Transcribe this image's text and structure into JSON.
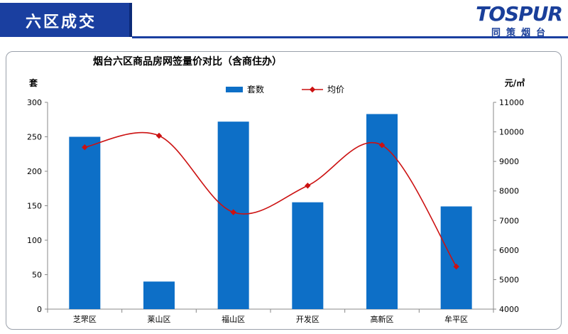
{
  "header": {
    "title": "六区成交"
  },
  "brand": {
    "name": "TOSPUR",
    "subtitle": "同策烟台",
    "color": "#1a3f9a"
  },
  "chart_data": {
    "type": "bar",
    "title": "烟台六区商品房网签量价对比（含商住办）",
    "categories": [
      "芝罘区",
      "莱山区",
      "福山区",
      "开发区",
      "高新区",
      "牟平区"
    ],
    "series": [
      {
        "name": "套数",
        "type": "bar",
        "axis": "left",
        "color": "#0d6fc7",
        "values": [
          250,
          40,
          272,
          155,
          283,
          149
        ]
      },
      {
        "name": "均价",
        "type": "line",
        "axis": "right",
        "color": "#cc1111",
        "values": [
          9480,
          9870,
          7280,
          8180,
          9550,
          5440
        ]
      }
    ],
    "ylabel": "套",
    "y2label": "元/㎡",
    "ylim": [
      0,
      300
    ],
    "yticks": [
      0,
      50,
      100,
      150,
      200,
      250,
      300
    ],
    "y2lim": [
      4000,
      11000
    ],
    "y2ticks": [
      4000,
      5000,
      6000,
      7000,
      8000,
      9000,
      10000,
      11000
    ],
    "legend": "top-center",
    "grid": false
  }
}
